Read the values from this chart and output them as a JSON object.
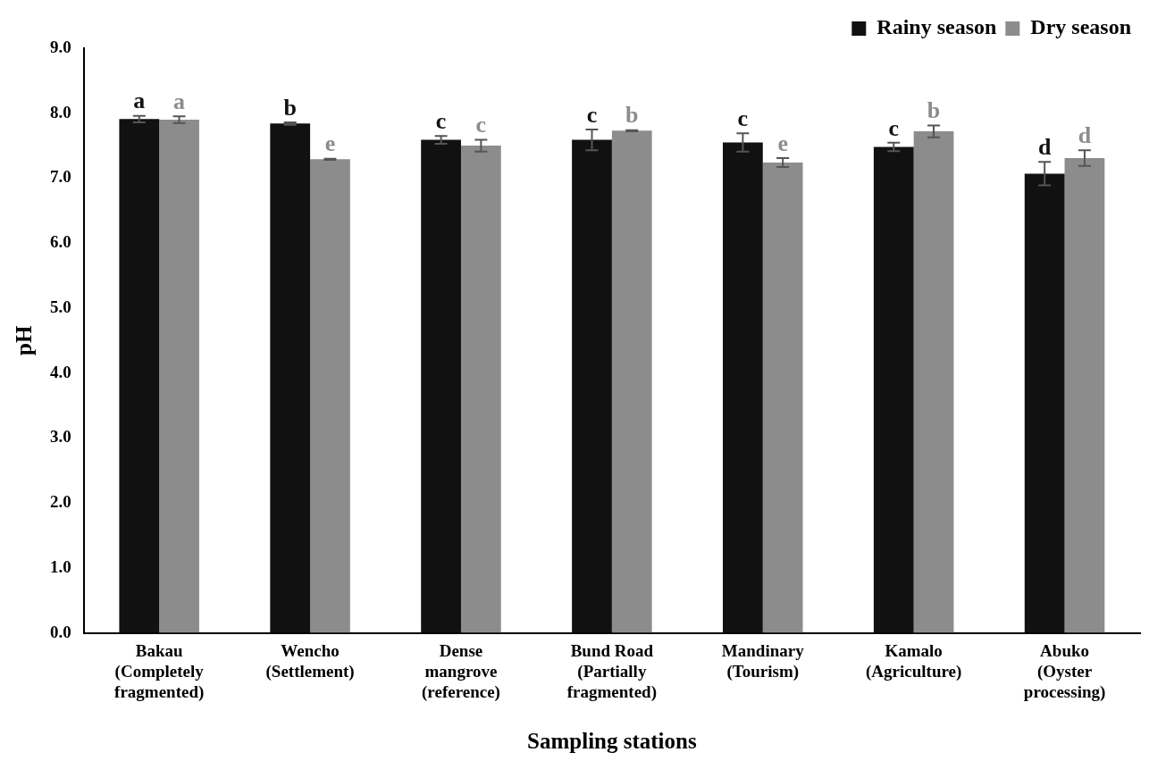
{
  "chart_data": {
    "type": "bar",
    "xlabel": "Sampling stations",
    "ylabel": "pH",
    "categories": [
      "Bakau\n(Completely\nfragmented)",
      "Wencho\n(Settlement)",
      "Dense\nmangrove\n(reference)",
      "Bund Road\n(Partially\nfragmented)",
      "Mandinary\n(Tourism)",
      "Kamalo\n(Agriculture)",
      "Abuko\n(Oyster\nprocessing)"
    ],
    "series": [
      {
        "name": "Rainy season",
        "color": "#111111",
        "values": [
          7.91,
          7.84,
          7.59,
          7.59,
          7.55,
          7.48,
          7.07
        ],
        "errors": [
          0.05,
          0.02,
          0.06,
          0.16,
          0.14,
          0.065,
          0.18
        ],
        "value_labels": [
          "a",
          "b",
          "c",
          "c",
          "c",
          "c",
          "d"
        ]
      },
      {
        "name": "Dry season",
        "color": "#8c8c8c",
        "values": [
          7.9,
          7.29,
          7.5,
          7.73,
          7.24,
          7.72,
          7.31
        ],
        "errors": [
          0.05,
          0.01,
          0.09,
          0.01,
          0.07,
          0.09,
          0.12
        ],
        "value_labels": [
          "a",
          "e",
          "c",
          "b",
          "e",
          "b",
          "d"
        ]
      }
    ],
    "ylim": [
      0,
      9
    ],
    "yticks": [
      {
        "value": 0,
        "label": "0.0"
      },
      {
        "value": 1,
        "label": "1.0"
      },
      {
        "value": 2,
        "label": "2.0"
      },
      {
        "value": 3,
        "label": "3.0"
      },
      {
        "value": 4,
        "label": "4.0"
      },
      {
        "value": 5,
        "label": "5.0"
      },
      {
        "value": 6,
        "label": "6.0"
      },
      {
        "value": 7,
        "label": "7.0"
      },
      {
        "value": 8,
        "label": "8.0"
      },
      {
        "value": 9,
        "label": "9.0"
      }
    ],
    "grid": false,
    "legend": "top right"
  }
}
